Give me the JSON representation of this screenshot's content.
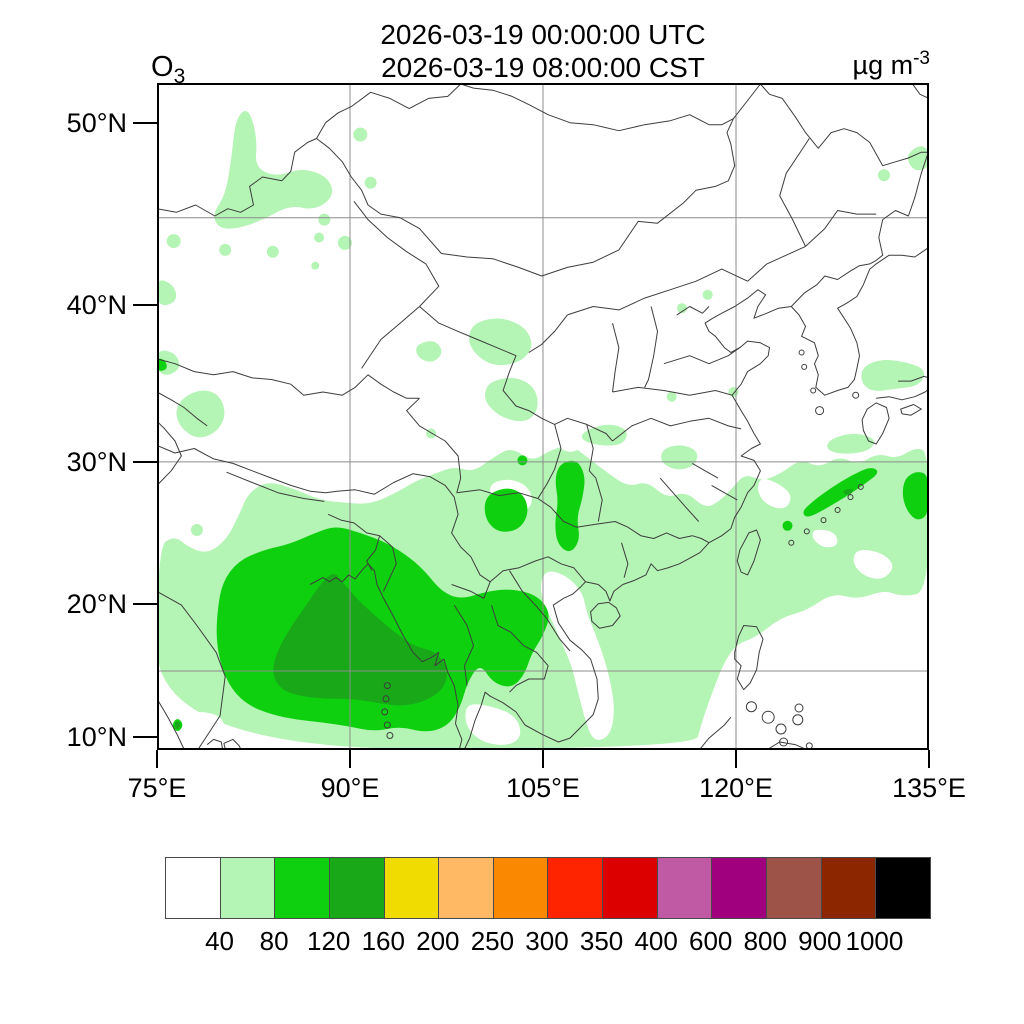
{
  "header": {
    "title_utc": "2026-03-19 00:00:00 UTC",
    "title_cst": "2026-03-19 08:00:00 CST",
    "species": "O",
    "species_sub": "3",
    "units": "µg m",
    "units_exp": "-3"
  },
  "axes": {
    "y_ticks": [
      {
        "label": "50°N",
        "lat": 50
      },
      {
        "label": "40°N",
        "lat": 40
      },
      {
        "label": "30°N",
        "lat": 30
      },
      {
        "label": "20°N",
        "lat": 20
      },
      {
        "label": "10°N",
        "lat": 10
      }
    ],
    "x_ticks": [
      {
        "label": "75°E",
        "lon": 75
      },
      {
        "label": "90°E",
        "lon": 90
      },
      {
        "label": "105°E",
        "lon": 105
      },
      {
        "label": "120°E",
        "lon": 120
      },
      {
        "label": "135°E",
        "lon": 135
      }
    ],
    "grid_lons": [
      90,
      105,
      120
    ],
    "grid_lats": [
      15,
      30,
      45
    ]
  },
  "colorbar": {
    "levels": [
      "40",
      "80",
      "120",
      "160",
      "200",
      "250",
      "300",
      "350",
      "400",
      "600",
      "800",
      "900",
      "1000"
    ],
    "colors": [
      "#ffffff",
      "#b4f4b4",
      "#0fd00f",
      "#18a818",
      "#f0dc00",
      "#ffb864",
      "#fa8800",
      "#ff2400",
      "#dd0000",
      "#c05aa5",
      "#a0007d",
      "#9e5348",
      "#8b2600",
      "#000000"
    ]
  },
  "chart_data": {
    "type": "heatmap",
    "title": [
      "2026-03-19 00:00:00 UTC",
      "2026-03-19 08:00:00 CST"
    ],
    "variable": "O3",
    "units": "µg m-3",
    "projection": "mercator",
    "lon_range": [
      75,
      135
    ],
    "lat_range": [
      9,
      52
    ],
    "x_tick_labels": [
      "75°E",
      "90°E",
      "105°E",
      "120°E",
      "135°E"
    ],
    "y_tick_labels": [
      "10°N",
      "20°N",
      "30°N",
      "40°N",
      "50°N"
    ],
    "gridlines": {
      "lons": [
        90,
        105,
        120
      ],
      "lats": [
        15,
        30,
        45
      ]
    },
    "contour_levels": [
      40,
      80,
      120,
      160,
      200,
      250,
      300,
      350,
      400,
      600,
      800,
      900,
      1000
    ],
    "palette": [
      "#ffffff",
      "#b4f4b4",
      "#0fd00f",
      "#18a818",
      "#f0dc00",
      "#ffb864",
      "#fa8800",
      "#ff2400",
      "#dd0000",
      "#c05aa5",
      "#a0007d",
      "#9e5348",
      "#8b2600",
      "#000000"
    ],
    "legend_position": "bottom",
    "max_shown_bin": "120-160",
    "features": [
      {
        "region": "Bay of Bengal / eastern India / Myanmar core",
        "lon": [
          83,
          98
        ],
        "lat": [
          12,
          23
        ],
        "value": "120-160"
      },
      {
        "region": "South Asia and Indochina broad plume",
        "lon": [
          78,
          106
        ],
        "lat": [
          10,
          26
        ],
        "value": "80-120"
      },
      {
        "region": "Yunnan-Guizhou / Sichuan-Chongqing patches",
        "lon": [
          100,
          109
        ],
        "lat": [
          23,
          31
        ],
        "value": "80-120"
      },
      {
        "region": "Ryukyu arc streak southeast of Japan",
        "lon": [
          125,
          135
        ],
        "lat": [
          26,
          30
        ],
        "value": "80-120"
      },
      {
        "region": "Wide 40-80 field over southern China, South China Sea and East China Sea",
        "lon": [
          75,
          135
        ],
        "lat": [
          9,
          31
        ],
        "value": "40-80"
      },
      {
        "region": "Xinjiang patches (northwest)",
        "lon": [
          79,
          91
        ],
        "lat": [
          43,
          51
        ],
        "value": "40-80"
      },
      {
        "region": "Scattered small 40-80 spots in Qinghai/Gansu and near Bohai",
        "lon": [
          95,
          121
        ],
        "lat": [
          32,
          41
        ],
        "value": "40-80"
      },
      {
        "region": "Most of northern and northeastern China",
        "lon": [
          90,
          135
        ],
        "lat": [
          32,
          52
        ],
        "value": "< 40"
      }
    ]
  }
}
